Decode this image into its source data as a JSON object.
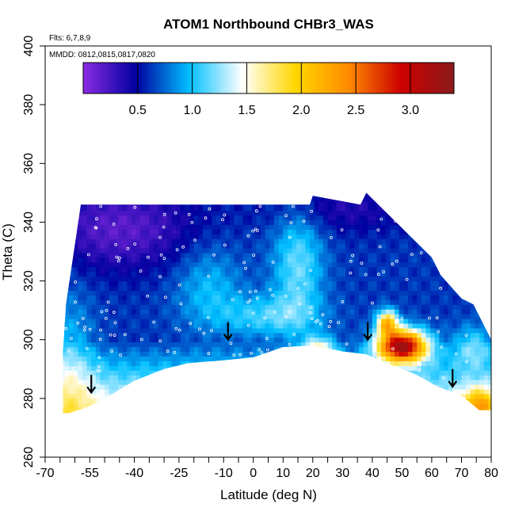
{
  "chart_data": {
    "type": "heatmap",
    "title": "ATOM1 Northbound CHBr3_WAS",
    "flights_note": "Flts: 6,7,8,9",
    "dates_note": "MMDD: 0812,0815,0817,0820",
    "xlabel": "Latitude (deg N)",
    "ylabel": "Theta (C)",
    "xlim": [
      -70,
      80
    ],
    "ylim": [
      260,
      400
    ],
    "x_tick_labels": [
      "-70",
      "-55",
      "-40",
      "-25",
      "-10",
      "0",
      "10",
      "20",
      "30",
      "40",
      "50",
      "60",
      "70",
      "80"
    ],
    "x_ticks": [
      -70,
      -55,
      -40,
      -25,
      -10,
      0,
      10,
      20,
      30,
      40,
      50,
      60,
      70,
      80
    ],
    "y_tick_labels": [
      "260",
      "280",
      "300",
      "320",
      "340",
      "360",
      "380",
      "400"
    ],
    "y_ticks": [
      260,
      280,
      300,
      320,
      340,
      360,
      380,
      400
    ],
    "colorbar": {
      "range": [
        0,
        3.4
      ],
      "tick_labels": [
        "0.5",
        "1.0",
        "1.5",
        "2.0",
        "2.5",
        "3.0"
      ],
      "ticks": [
        0.5,
        1.0,
        1.5,
        2.0,
        2.5,
        3.0
      ],
      "colors": [
        "#8a2be2",
        "#0000a0",
        "#00bfff",
        "#ffffff",
        "#ffd700",
        "#ff8c00",
        "#cc0000",
        "#8b1a1a"
      ]
    },
    "tropopause_arrows": [
      {
        "lat": -54.5,
        "theta": 282
      },
      {
        "lat": -8.5,
        "theta": 300
      },
      {
        "lat": 38.5,
        "theta": 300
      },
      {
        "lat": 67,
        "theta": 284
      }
    ],
    "field_notes": [
      {
        "region": "upper southern latitudes (-55 to -20, theta 320-345)",
        "value": 0.2
      },
      {
        "region": "mid troposphere tropics (-20 to 30, theta 300-320)",
        "value": 0.6
      },
      {
        "region": "lower troposphere near surface",
        "value": 1.3
      },
      {
        "region": "northern mid-latitude maximum (45 to 55, theta 295-305)",
        "value": 3.1
      }
    ]
  }
}
